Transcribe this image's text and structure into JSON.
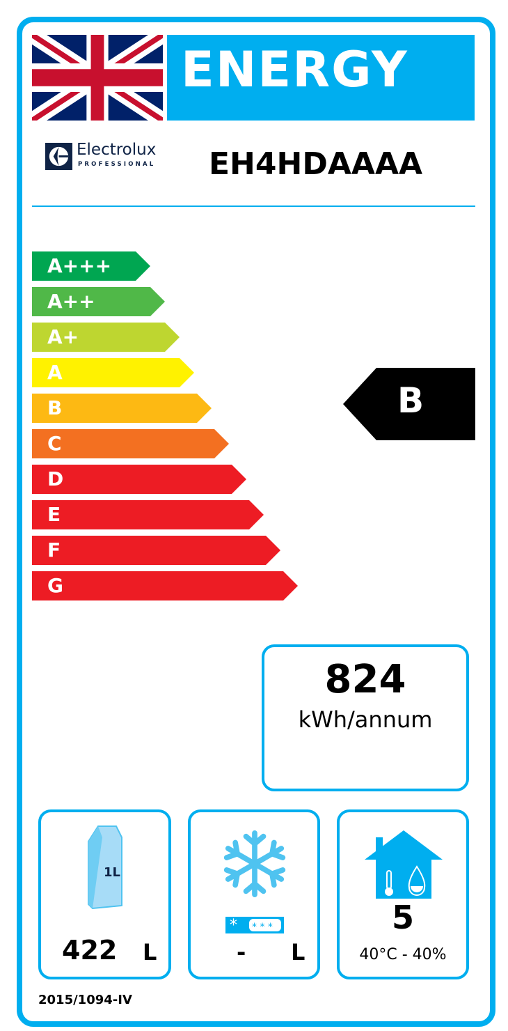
{
  "header": {
    "title": "ENERGY",
    "flag_icon": "union-jack-flag"
  },
  "brand": {
    "name": "Electrolux",
    "subline": "PROFESSIONAL",
    "logo_icon": "electrolux-logo"
  },
  "model": "EH4HDAAAA",
  "scale": {
    "classes": [
      {
        "label": "A+++",
        "color": "#00a651"
      },
      {
        "label": "A++",
        "color": "#50b848"
      },
      {
        "label": "A+",
        "color": "#bed630"
      },
      {
        "label": "A",
        "color": "#fff200"
      },
      {
        "label": "B",
        "color": "#fdb913"
      },
      {
        "label": "C",
        "color": "#f37021"
      },
      {
        "label": "D",
        "color": "#ed1c24"
      },
      {
        "label": "E",
        "color": "#ed1c24"
      },
      {
        "label": "F",
        "color": "#ed1c24"
      },
      {
        "label": "G",
        "color": "#ed1c24"
      }
    ],
    "rating": "B"
  },
  "consumption": {
    "value": "824",
    "unit": "kWh/annum"
  },
  "storage": {
    "volume": "422",
    "unit": "L",
    "icon": "milk-carton-icon",
    "carton_label": "1L"
  },
  "frozen": {
    "volume": "-",
    "unit": "L",
    "icon": "snowflake-icon"
  },
  "climate": {
    "class": "5",
    "conditions": "40°C - 40%",
    "icon": "house-temperature-humidity-icon"
  },
  "regulation": "2015/1094-IV",
  "accent_color": "#00aeef"
}
